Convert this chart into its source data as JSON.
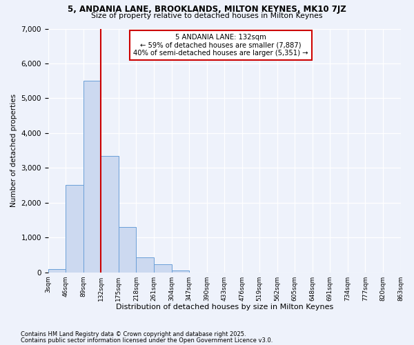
{
  "title1": "5, ANDANIA LANE, BROOKLANDS, MILTON KEYNES, MK10 7JZ",
  "title2": "Size of property relative to detached houses in Milton Keynes",
  "xlabel": "Distribution of detached houses by size in Milton Keynes",
  "ylabel": "Number of detached properties",
  "bar_values": [
    100,
    2500,
    5500,
    3350,
    1300,
    430,
    220,
    60,
    0,
    0,
    0,
    0,
    0,
    0,
    0,
    0,
    0,
    0,
    0,
    0
  ],
  "bin_edges": [
    3,
    46,
    89,
    132,
    175,
    218,
    261,
    304,
    347,
    390,
    433,
    476,
    519,
    562,
    605,
    648,
    691,
    734,
    777,
    820,
    863
  ],
  "tick_labels": [
    "3sqm",
    "46sqm",
    "89sqm",
    "132sqm",
    "175sqm",
    "218sqm",
    "261sqm",
    "304sqm",
    "347sqm",
    "390sqm",
    "433sqm",
    "476sqm",
    "519sqm",
    "562sqm",
    "605sqm",
    "648sqm",
    "691sqm",
    "734sqm",
    "777sqm",
    "820sqm",
    "863sqm"
  ],
  "property_line_x": 132,
  "bar_facecolor": "#ccd9f0",
  "bar_edgecolor": "#6a9fd8",
  "line_color": "#cc0000",
  "annotation_title": "5 ANDANIA LANE: 132sqm",
  "annotation_line2": "← 59% of detached houses are smaller (7,887)",
  "annotation_line3": "40% of semi-detached houses are larger (5,351) →",
  "annotation_box_edgecolor": "#cc0000",
  "ylim": [
    0,
    7000
  ],
  "yticks": [
    0,
    1000,
    2000,
    3000,
    4000,
    5000,
    6000,
    7000
  ],
  "bg_color": "#eef2fb",
  "grid_color": "#ffffff",
  "footnote1": "Contains HM Land Registry data © Crown copyright and database right 2025.",
  "footnote2": "Contains public sector information licensed under the Open Government Licence v3.0."
}
